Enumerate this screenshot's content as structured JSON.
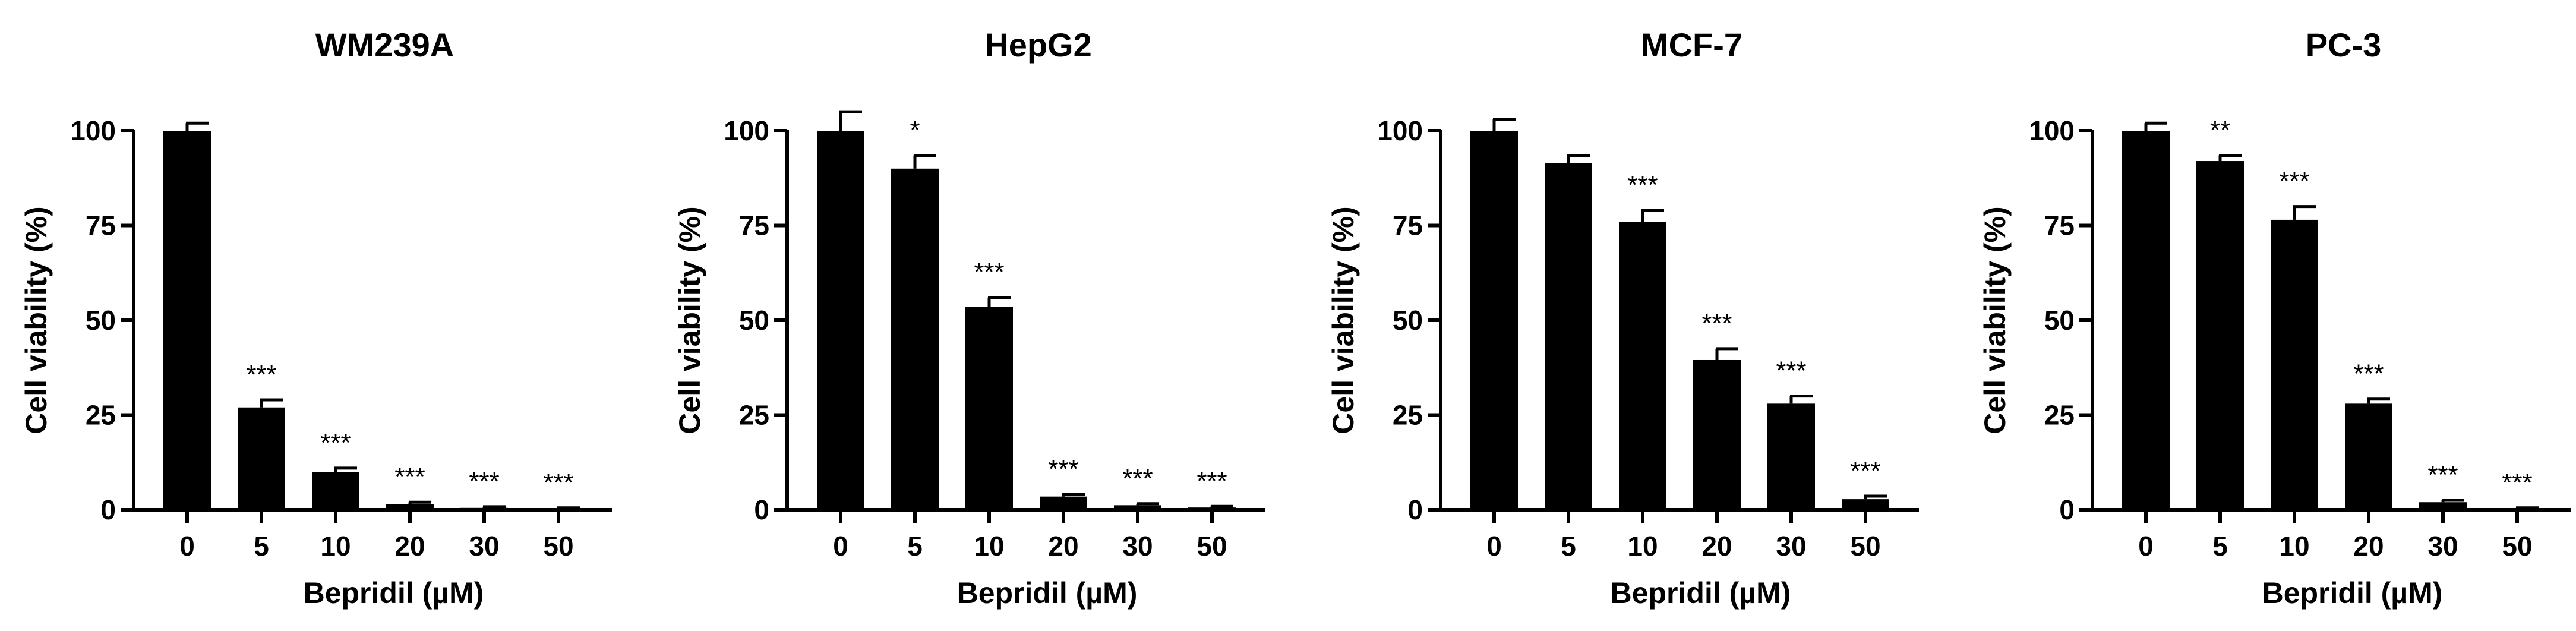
{
  "chart_data": [
    {
      "type": "bar",
      "title": "WM239A",
      "xlabel": "Bepridil (µM)",
      "ylabel": "Cell viability (%)",
      "categories": [
        "0",
        "5",
        "10",
        "20",
        "30",
        "50"
      ],
      "values": [
        100,
        27,
        10,
        1.5,
        0.5,
        0.3
      ],
      "errors": [
        2,
        2,
        1,
        0.5,
        0.3,
        0.2
      ],
      "significance": [
        "",
        "***",
        "***",
        "***",
        "***",
        "***"
      ],
      "ylim": [
        0,
        100
      ],
      "yticks": [
        "0",
        "25",
        "50",
        "75",
        "100"
      ],
      "grid": false,
      "bar_color": "#000000"
    },
    {
      "type": "bar",
      "title": "HepG2",
      "xlabel": "Bepridil (µM)",
      "ylabel": "Cell viability (%)",
      "categories": [
        "0",
        "5",
        "10",
        "20",
        "30",
        "50"
      ],
      "values": [
        100,
        90,
        53.5,
        3.5,
        1.2,
        0.6
      ],
      "errors": [
        5,
        3.5,
        2.5,
        0.6,
        0.4,
        0.3
      ],
      "significance": [
        "",
        "*",
        "***",
        "***",
        "***",
        "***"
      ],
      "ylim": [
        0,
        100
      ],
      "yticks": [
        "0",
        "25",
        "50",
        "75",
        "100"
      ],
      "grid": false,
      "bar_color": "#000000"
    },
    {
      "type": "bar",
      "title": "MCF-7",
      "xlabel": "Bepridil (µM)",
      "ylabel": "Cell viability (%)",
      "categories": [
        "0",
        "5",
        "10",
        "20",
        "30",
        "50"
      ],
      "values": [
        100,
        91.5,
        76,
        39.5,
        28,
        2.8
      ],
      "errors": [
        3,
        2,
        3,
        3,
        2,
        0.8
      ],
      "significance": [
        "",
        "",
        "***",
        "***",
        "***",
        "***"
      ],
      "ylim": [
        0,
        100
      ],
      "yticks": [
        "0",
        "25",
        "50",
        "75",
        "100"
      ],
      "grid": false,
      "bar_color": "#000000"
    },
    {
      "type": "bar",
      "title": "PC-3",
      "xlabel": "Bepridil (µM)",
      "ylabel": "Cell viability (%)",
      "categories": [
        "0",
        "5",
        "10",
        "20",
        "30",
        "50"
      ],
      "values": [
        100,
        92,
        76.5,
        28,
        2,
        0.3
      ],
      "errors": [
        2,
        1.5,
        3.5,
        1.2,
        0.5,
        0.2
      ],
      "significance": [
        "",
        "**",
        "***",
        "***",
        "***",
        "***"
      ],
      "ylim": [
        0,
        100
      ],
      "yticks": [
        "0",
        "25",
        "50",
        "75",
        "100"
      ],
      "grid": false,
      "bar_color": "#000000"
    }
  ]
}
